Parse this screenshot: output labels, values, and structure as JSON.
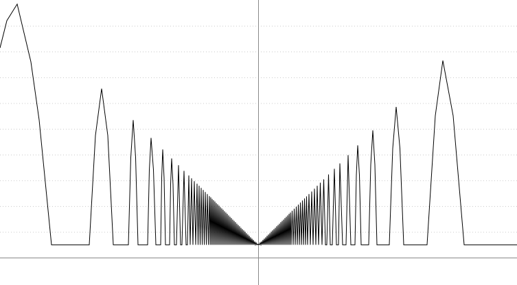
{
  "chart_data": {
    "type": "line",
    "color": "#000000",
    "grid": true,
    "xlim": [
      -376,
      377
    ],
    "ylim": [
      -1.06,
      10
    ],
    "yticks": [
      1,
      2,
      3,
      4,
      5,
      6,
      7,
      8,
      9
    ],
    "x": [
      -376,
      -366,
      -351,
      -331,
      -319,
      -301,
      -246,
      -237,
      -228,
      -219,
      -211,
      -189,
      -185.5,
      -182,
      -178.5,
      -175,
      -161,
      -158.5,
      -156,
      -152.5,
      -149,
      -142,
      -140.5,
      -139,
      -137,
      -135,
      -129,
      -127.5,
      -126,
      -124,
      -122,
      -119,
      -116,
      -113,
      -111,
      -108,
      -105,
      -103,
      -101,
      -99,
      -97,
      -95,
      -93,
      -91,
      -89,
      -87.5,
      -86,
      -84.5,
      -83,
      -81.5,
      -80,
      -78.5,
      -77,
      -75.5,
      -74,
      -72.5,
      -71,
      -70,
      -69,
      -68,
      -67,
      -66,
      -65,
      -64,
      -63,
      -62,
      -61,
      -60,
      -59,
      -58,
      -57,
      -56,
      -55,
      -54,
      -53,
      -52,
      -51,
      -50,
      -49,
      -48,
      -47,
      -46,
      -45,
      -44,
      -43,
      -42,
      -41,
      -40,
      -39,
      -38,
      -37,
      -36,
      -35,
      -34,
      -33,
      -32,
      -31,
      -30,
      -29,
      -28,
      -27,
      -26,
      -25,
      -24,
      -23,
      -22,
      -21,
      -20,
      -19,
      -18,
      -17,
      -16,
      -15,
      -14,
      -13,
      -12,
      -11,
      -10,
      -9,
      -8,
      -7,
      -6,
      -5,
      -4,
      -3,
      -2,
      -1,
      0,
      1,
      2,
      3,
      4,
      5,
      6,
      7,
      8,
      9,
      10,
      11,
      12,
      13,
      14,
      15,
      16,
      17,
      18,
      19,
      20,
      21,
      22,
      23,
      24,
      25,
      26,
      27,
      28,
      29,
      30,
      31,
      32,
      33,
      34,
      35,
      36,
      37,
      38,
      39,
      40,
      41,
      42,
      43,
      44,
      45,
      46,
      47,
      48,
      49.5,
      51,
      52.5,
      54,
      55.5,
      57,
      58.5,
      60,
      61.5,
      63,
      64.5,
      66,
      67.5,
      69,
      70.5,
      72,
      74,
      76,
      78,
      80,
      82,
      84,
      86,
      88,
      90.5,
      93,
      95.5,
      98,
      100,
      102.5,
      105,
      108,
      111,
      114,
      117,
      119,
      123,
      128,
      131,
      135,
      141,
      143,
      145,
      147.5,
      150,
      161,
      164,
      167,
      170,
      173,
      191,
      196,
      201,
      206.5,
      212,
      246,
      258,
      269,
      284,
      300,
      377
    ],
    "values": [
      8.14,
      9.2,
      9.84,
      7.6,
      5.35,
      0.5,
      0.5,
      4.74,
      6.56,
      4.74,
      0.5,
      0.5,
      3.89,
      5.34,
      3.89,
      0.5,
      0.5,
      3.41,
      4.65,
      3.41,
      0.5,
      0.5,
      3.09,
      4.2,
      3.09,
      0.5,
      0.5,
      2.85,
      3.85,
      2.85,
      0.5,
      0.5,
      3.59,
      0.5,
      0.5,
      3.37,
      0.5,
      0.5,
      3.19,
      0.5,
      3.08,
      0.5,
      2.97,
      0.5,
      2.87,
      0.5,
      2.79,
      0.5,
      2.71,
      0.5,
      2.63,
      0.5,
      2.55,
      0.5,
      2.47,
      0.5,
      2.39,
      0.5,
      2.34,
      0.5,
      2.28,
      0.5,
      2.23,
      0.5,
      2.18,
      0.5,
      2.12,
      0.5,
      2.07,
      0.5,
      2.02,
      0.5,
      1.96,
      0.5,
      1.91,
      0.5,
      1.86,
      0.5,
      1.8,
      0.5,
      1.75,
      0.5,
      1.7,
      0.5,
      1.64,
      0.5,
      1.59,
      0.5,
      1.54,
      0.5,
      1.48,
      0.5,
      1.43,
      0.5,
      1.38,
      0.5,
      1.32,
      0.5,
      1.27,
      0.5,
      1.22,
      0.5,
      1.16,
      0.5,
      1.11,
      0.5,
      1.06,
      0.5,
      1.01,
      0.5,
      0.95,
      0.5,
      0.9,
      0.5,
      0.85,
      0.5,
      0.79,
      0.5,
      0.74,
      0.5,
      0.69,
      0.5,
      0.63,
      0.5,
      0.58,
      0.5,
      0.53,
      0.5,
      0.53,
      0.5,
      0.58,
      0.5,
      0.63,
      0.5,
      0.69,
      0.5,
      0.74,
      0.5,
      0.79,
      0.5,
      0.85,
      0.5,
      0.9,
      0.5,
      0.95,
      0.5,
      1.01,
      0.5,
      1.06,
      0.5,
      1.11,
      0.5,
      1.16,
      0.5,
      1.22,
      0.5,
      1.27,
      0.5,
      1.32,
      0.5,
      1.38,
      0.5,
      1.43,
      0.5,
      1.48,
      0.5,
      1.54,
      0.5,
      1.59,
      0.5,
      1.64,
      0.5,
      1.7,
      0.5,
      1.75,
      0.5,
      1.82,
      0.5,
      1.9,
      0.5,
      1.98,
      0.5,
      2.06,
      0.5,
      2.14,
      0.5,
      2.22,
      0.5,
      2.3,
      0.5,
      2.38,
      0.5,
      2.47,
      0.5,
      2.57,
      0.5,
      2.68,
      0.5,
      2.79,
      0.5,
      2.91,
      0.5,
      3.04,
      0.5,
      0.5,
      3.23,
      0.5,
      0.5,
      3.45,
      0.5,
      0.5,
      3.66,
      0.5,
      0.5,
      3.98,
      0.5,
      0.5,
      3.2,
      4.36,
      3.2,
      0.5,
      0.5,
      3.61,
      4.94,
      3.61,
      0.5,
      0.5,
      4.24,
      5.85,
      4.24,
      0.5,
      0.5,
      5.51,
      7.65,
      5.51,
      0.5,
      0.5
    ]
  }
}
